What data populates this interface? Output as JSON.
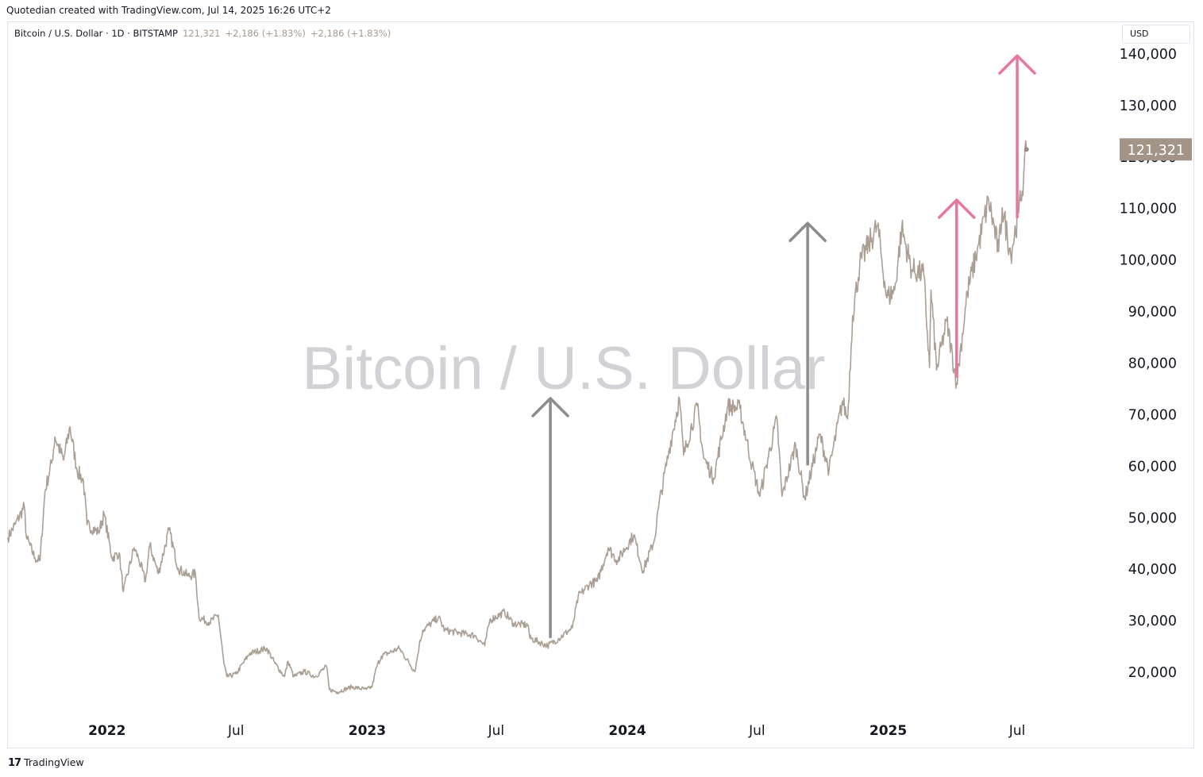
{
  "header": {
    "attribution": "Quotedian created with TradingView.com, Jul 14, 2025 16:26 UTC+2"
  },
  "legend": {
    "symbol": "Bitcoin / U.S. Dollar · 1D · BITSTAMP",
    "price": "121,321",
    "change1": "+2,186 (+1.83%)",
    "change2": "+2,186 (+1.83%)"
  },
  "currency_button": "USD",
  "footer": {
    "brand": "TradingView"
  },
  "colors": {
    "line": "#ab9f93",
    "arrow_gray": "#8c8c8c",
    "arrow_pink": "#e6789f",
    "badge": "#a29487",
    "watermark": "#d1d1d6"
  },
  "chart_data": {
    "type": "line",
    "watermark": "Bitcoin / U.S. Dollar",
    "ylim": [
      12000,
      146000
    ],
    "y_ticks": [
      20000,
      30000,
      40000,
      50000,
      60000,
      70000,
      80000,
      90000,
      100000,
      110000,
      120000,
      130000,
      140000
    ],
    "y_tick_labels": [
      "20,000",
      "30,000",
      "40,000",
      "50,000",
      "60,000",
      "70,000",
      "80,000",
      "90,000",
      "100,000",
      "110,000",
      "120,000",
      "130,000",
      "140,000"
    ],
    "x_range": [
      "2021-08-15",
      "2025-11-15"
    ],
    "x_ticks": [
      {
        "date": "2022-01-01",
        "label": "2022",
        "bold": true
      },
      {
        "date": "2022-07-01",
        "label": "Jul",
        "bold": false
      },
      {
        "date": "2023-01-01",
        "label": "2023",
        "bold": true
      },
      {
        "date": "2023-07-01",
        "label": "Jul",
        "bold": false
      },
      {
        "date": "2024-01-01",
        "label": "2024",
        "bold": true
      },
      {
        "date": "2024-07-01",
        "label": "Jul",
        "bold": false
      },
      {
        "date": "2025-01-01",
        "label": "2025",
        "bold": true
      },
      {
        "date": "2025-07-01",
        "label": "Jul",
        "bold": false
      }
    ],
    "last_price_label": "121,321",
    "last_value": 121321,
    "series": [
      {
        "points": [
          [
            "2021-08-15",
            46000
          ],
          [
            "2021-08-25",
            48500
          ],
          [
            "2021-09-07",
            52000
          ],
          [
            "2021-09-10",
            46000
          ],
          [
            "2021-09-22",
            42000
          ],
          [
            "2021-09-29",
            41500
          ],
          [
            "2021-10-06",
            55000
          ],
          [
            "2021-10-16",
            61000
          ],
          [
            "2021-10-20",
            65500
          ],
          [
            "2021-11-01",
            61000
          ],
          [
            "2021-11-10",
            67500
          ],
          [
            "2021-11-20",
            59000
          ],
          [
            "2021-11-29",
            57000
          ],
          [
            "2021-12-04",
            48500
          ],
          [
            "2021-12-20",
            47000
          ],
          [
            "2021-12-28",
            50500
          ],
          [
            "2022-01-08",
            42000
          ],
          [
            "2022-01-18",
            43000
          ],
          [
            "2022-01-24",
            35500
          ],
          [
            "2022-02-08",
            44000
          ],
          [
            "2022-02-14",
            42000
          ],
          [
            "2022-02-24",
            37500
          ],
          [
            "2022-03-02",
            44500
          ],
          [
            "2022-03-14",
            39000
          ],
          [
            "2022-03-29",
            47500
          ],
          [
            "2022-04-11",
            40000
          ],
          [
            "2022-04-25",
            38500
          ],
          [
            "2022-05-05",
            39000
          ],
          [
            "2022-05-10",
            30500
          ],
          [
            "2022-05-25",
            29500
          ],
          [
            "2022-06-06",
            31000
          ],
          [
            "2022-06-14",
            21500
          ],
          [
            "2022-06-18",
            19000
          ],
          [
            "2022-07-01",
            19500
          ],
          [
            "2022-07-20",
            23500
          ],
          [
            "2022-08-13",
            24500
          ],
          [
            "2022-08-25",
            21500
          ],
          [
            "2022-09-07",
            19000
          ],
          [
            "2022-09-12",
            22000
          ],
          [
            "2022-09-20",
            19000
          ],
          [
            "2022-10-05",
            20000
          ],
          [
            "2022-10-20",
            19000
          ],
          [
            "2022-11-05",
            21000
          ],
          [
            "2022-11-09",
            16500
          ],
          [
            "2022-11-20",
            16000
          ],
          [
            "2022-12-10",
            17000
          ],
          [
            "2022-12-31",
            16500
          ],
          [
            "2023-01-08",
            17100
          ],
          [
            "2023-01-14",
            20800
          ],
          [
            "2023-01-21",
            23000
          ],
          [
            "2023-02-15",
            24500
          ],
          [
            "2023-03-09",
            20000
          ],
          [
            "2023-03-15",
            25000
          ],
          [
            "2023-03-20",
            28000
          ],
          [
            "2023-04-11",
            30500
          ],
          [
            "2023-04-20",
            28000
          ],
          [
            "2023-05-10",
            27500
          ],
          [
            "2023-06-01",
            27000
          ],
          [
            "2023-06-15",
            25000
          ],
          [
            "2023-06-22",
            30000
          ],
          [
            "2023-07-13",
            31500
          ],
          [
            "2023-07-25",
            29300
          ],
          [
            "2023-08-15",
            29000
          ],
          [
            "2023-08-17",
            26500
          ],
          [
            "2023-09-11",
            25000
          ],
          [
            "2023-09-26",
            26300
          ],
          [
            "2023-10-16",
            28500
          ],
          [
            "2023-10-24",
            34500
          ],
          [
            "2023-11-09",
            37000
          ],
          [
            "2023-11-20",
            37500
          ],
          [
            "2023-12-05",
            44000
          ],
          [
            "2023-12-18",
            41500
          ],
          [
            "2024-01-10",
            46500
          ],
          [
            "2024-01-23",
            39500
          ],
          [
            "2024-02-08",
            45500
          ],
          [
            "2024-02-14",
            52000
          ],
          [
            "2024-02-28",
            62500
          ],
          [
            "2024-03-14",
            73000
          ],
          [
            "2024-03-20",
            62000
          ],
          [
            "2024-04-08",
            71500
          ],
          [
            "2024-04-17",
            61500
          ],
          [
            "2024-05-01",
            57500
          ],
          [
            "2024-05-21",
            71500
          ],
          [
            "2024-06-07",
            71000
          ],
          [
            "2024-06-24",
            60000
          ],
          [
            "2024-07-05",
            54000
          ],
          [
            "2024-07-14",
            60000
          ],
          [
            "2024-07-29",
            69000
          ],
          [
            "2024-08-05",
            54000
          ],
          [
            "2024-08-24",
            64000
          ],
          [
            "2024-09-06",
            53500
          ],
          [
            "2024-09-27",
            66000
          ],
          [
            "2024-10-10",
            59000
          ],
          [
            "2024-10-29",
            72500
          ],
          [
            "2024-11-05",
            69000
          ],
          [
            "2024-11-12",
            89000
          ],
          [
            "2024-11-22",
            99000
          ],
          [
            "2024-12-05",
            103000
          ],
          [
            "2024-12-17",
            106500
          ],
          [
            "2024-12-30",
            92500
          ],
          [
            "2025-01-10",
            94000
          ],
          [
            "2025-01-20",
            106000
          ],
          [
            "2025-02-03",
            98000
          ],
          [
            "2025-02-20",
            97000
          ],
          [
            "2025-02-28",
            79000
          ],
          [
            "2025-03-02",
            94000
          ],
          [
            "2025-03-10",
            78500
          ],
          [
            "2025-03-24",
            88000
          ],
          [
            "2025-04-07",
            76000
          ],
          [
            "2025-04-22",
            93500
          ],
          [
            "2025-05-08",
            103000
          ],
          [
            "2025-05-22",
            111500
          ],
          [
            "2025-06-05",
            101500
          ],
          [
            "2025-06-10",
            110000
          ],
          [
            "2025-06-22",
            101000
          ],
          [
            "2025-07-03",
            109000
          ],
          [
            "2025-07-10",
            116000
          ],
          [
            "2025-07-14",
            121321
          ]
        ]
      }
    ],
    "annotations": [
      {
        "type": "arrow",
        "color": "gray",
        "from": [
          "2023-09-15",
          26500
        ],
        "to": [
          "2023-09-15",
          73000
        ]
      },
      {
        "type": "arrow",
        "color": "gray",
        "from": [
          "2024-09-10",
          60000
        ],
        "to": [
          "2024-09-10",
          107000
        ]
      },
      {
        "type": "arrow",
        "color": "pink",
        "from": [
          "2025-04-07",
          77000
        ],
        "to": [
          "2025-04-07",
          111500
        ]
      },
      {
        "type": "arrow",
        "color": "pink",
        "from": [
          "2025-07-01",
          108000
        ],
        "to": [
          "2025-07-01",
          139500
        ]
      }
    ]
  }
}
